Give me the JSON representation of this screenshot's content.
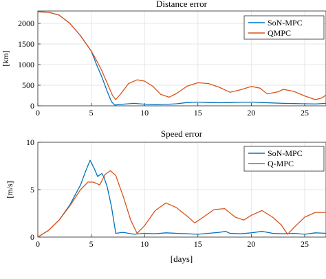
{
  "chart_data": [
    {
      "type": "line",
      "title": "Distance error",
      "xlabel": "",
      "ylabel": "[km]",
      "xlim": [
        0,
        27
      ],
      "ylim": [
        0,
        2300
      ],
      "xticks": [
        0,
        5,
        10,
        15,
        20,
        25
      ],
      "yticks": [
        0,
        500,
        1000,
        1500,
        2000
      ],
      "grid": true,
      "legend_position": "top-right",
      "series": [
        {
          "name": "SoN-MPC",
          "color": "#0072BD",
          "points": [
            [
              0,
              2280
            ],
            [
              1,
              2270
            ],
            [
              2,
              2200
            ],
            [
              3,
              2000
            ],
            [
              4,
              1700
            ],
            [
              5,
              1330
            ],
            [
              5.5,
              1000
            ],
            [
              6,
              700
            ],
            [
              6.5,
              350
            ],
            [
              6.9,
              100
            ],
            [
              7.2,
              20
            ],
            [
              8,
              40
            ],
            [
              9,
              60
            ],
            [
              10,
              40
            ],
            [
              11,
              30
            ],
            [
              12,
              35
            ],
            [
              13,
              50
            ],
            [
              14,
              80
            ],
            [
              15,
              90
            ],
            [
              16,
              80
            ],
            [
              17,
              75
            ],
            [
              18,
              80
            ],
            [
              19,
              85
            ],
            [
              20,
              90
            ],
            [
              21,
              80
            ],
            [
              22,
              70
            ],
            [
              23,
              60
            ],
            [
              24,
              55
            ],
            [
              25,
              50
            ],
            [
              26,
              45
            ],
            [
              27,
              60
            ]
          ]
        },
        {
          "name": "QMPC",
          "color": "#D95319",
          "points": [
            [
              0,
              2280
            ],
            [
              1,
              2270
            ],
            [
              2,
              2200
            ],
            [
              3,
              2000
            ],
            [
              4,
              1700
            ],
            [
              5,
              1330
            ],
            [
              5.5,
              1100
            ],
            [
              6,
              850
            ],
            [
              6.5,
              550
            ],
            [
              7,
              250
            ],
            [
              7.3,
              150
            ],
            [
              7.8,
              300
            ],
            [
              8.5,
              540
            ],
            [
              9.3,
              630
            ],
            [
              10,
              600
            ],
            [
              10.8,
              470
            ],
            [
              11.5,
              280
            ],
            [
              12.3,
              210
            ],
            [
              13,
              300
            ],
            [
              14,
              480
            ],
            [
              15,
              560
            ],
            [
              16,
              540
            ],
            [
              17,
              450
            ],
            [
              18,
              330
            ],
            [
              19,
              390
            ],
            [
              20,
              470
            ],
            [
              20.8,
              430
            ],
            [
              21.5,
              290
            ],
            [
              22.5,
              340
            ],
            [
              23,
              400
            ],
            [
              24,
              350
            ],
            [
              25,
              240
            ],
            [
              26,
              150
            ],
            [
              26.6,
              190
            ],
            [
              27,
              260
            ]
          ]
        }
      ]
    },
    {
      "type": "line",
      "title": "Speed error",
      "xlabel": "[days]",
      "ylabel": "[m/s]",
      "xlim": [
        0,
        27
      ],
      "ylim": [
        0,
        10
      ],
      "xticks": [
        0,
        5,
        10,
        15,
        20,
        25
      ],
      "yticks": [
        0,
        5,
        10
      ],
      "grid": true,
      "legend_position": "top-right",
      "series": [
        {
          "name": "SoN-MPC",
          "color": "#0072BD",
          "points": [
            [
              0,
              0
            ],
            [
              1,
              0.7
            ],
            [
              2,
              1.8
            ],
            [
              3,
              3.4
            ],
            [
              4,
              5.5
            ],
            [
              4.5,
              7
            ],
            [
              4.9,
              8.1
            ],
            [
              5.3,
              7.2
            ],
            [
              5.6,
              6.4
            ],
            [
              6,
              6.7
            ],
            [
              6.2,
              6.3
            ],
            [
              6.5,
              5.3
            ],
            [
              6.9,
              3.2
            ],
            [
              7.3,
              0.4
            ],
            [
              8,
              0.5
            ],
            [
              9,
              0.3
            ],
            [
              10,
              0.4
            ],
            [
              11,
              0.35
            ],
            [
              12,
              0.45
            ],
            [
              13,
              0.4
            ],
            [
              14,
              0.35
            ],
            [
              15,
              0.3
            ],
            [
              16,
              0.4
            ],
            [
              17,
              0.5
            ],
            [
              17.6,
              0.6
            ],
            [
              18,
              0.4
            ],
            [
              19,
              0.35
            ],
            [
              20,
              0.45
            ],
            [
              21,
              0.6
            ],
            [
              22,
              0.4
            ],
            [
              23,
              0.35
            ],
            [
              24,
              0.4
            ],
            [
              25,
              0.3
            ],
            [
              26,
              0.45
            ],
            [
              27,
              0.4
            ]
          ]
        },
        {
          "name": "Q-MPC",
          "color": "#D95319",
          "points": [
            [
              0,
              0
            ],
            [
              1,
              0.7
            ],
            [
              2,
              1.8
            ],
            [
              3,
              3.3
            ],
            [
              4,
              5.0
            ],
            [
              4.7,
              5.8
            ],
            [
              5.2,
              5.8
            ],
            [
              5.8,
              5.5
            ],
            [
              6.3,
              6.6
            ],
            [
              6.8,
              7.0
            ],
            [
              7.3,
              6.5
            ],
            [
              8,
              4.3
            ],
            [
              8.7,
              1.8
            ],
            [
              9.3,
              0.4
            ],
            [
              10,
              1.2
            ],
            [
              11,
              2.8
            ],
            [
              12,
              3.6
            ],
            [
              13,
              3.1
            ],
            [
              14,
              2.2
            ],
            [
              14.7,
              1.5
            ],
            [
              15.5,
              2.1
            ],
            [
              16.5,
              2.9
            ],
            [
              17.5,
              3.0
            ],
            [
              18.5,
              2.1
            ],
            [
              19.3,
              1.8
            ],
            [
              20,
              2.3
            ],
            [
              21,
              2.8
            ],
            [
              22,
              2.1
            ],
            [
              22.8,
              1.3
            ],
            [
              23.4,
              0.3
            ],
            [
              24,
              1.0
            ],
            [
              25,
              2.1
            ],
            [
              26,
              2.6
            ],
            [
              27,
              2.6
            ]
          ]
        }
      ]
    }
  ]
}
